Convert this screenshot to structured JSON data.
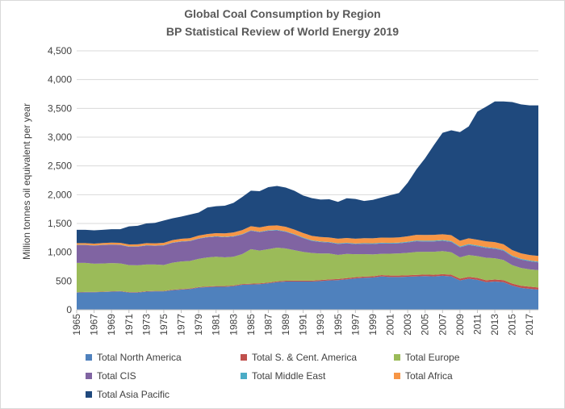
{
  "chart_data": {
    "type": "area",
    "stacked": true,
    "title": "Global Coal Consumption by Region",
    "subtitle": "BP Statistical Review of World Energy 2019",
    "xlabel": "",
    "ylabel": "Million tonnes oil equivalent per year",
    "ylim": [
      0,
      4500
    ],
    "yticks": [
      "0",
      "500",
      "1,000",
      "1,500",
      "2,000",
      "2,500",
      "3,000",
      "3,500",
      "4,000",
      "4,500"
    ],
    "x": [
      1965,
      1966,
      1967,
      1968,
      1969,
      1970,
      1971,
      1972,
      1973,
      1974,
      1975,
      1976,
      1977,
      1978,
      1979,
      1980,
      1981,
      1982,
      1983,
      1984,
      1985,
      1986,
      1987,
      1988,
      1989,
      1990,
      1991,
      1992,
      1993,
      1994,
      1995,
      1996,
      1997,
      1998,
      1999,
      2000,
      2001,
      2002,
      2003,
      2004,
      2005,
      2006,
      2007,
      2008,
      2009,
      2010,
      2011,
      2012,
      2013,
      2014,
      2015,
      2016,
      2017,
      2018
    ],
    "xticks": [
      "1965",
      "1967",
      "1969",
      "1971",
      "1973",
      "1975",
      "1977",
      "1979",
      "1981",
      "1983",
      "1985",
      "1987",
      "1989",
      "1991",
      "1993",
      "1995",
      "1997",
      "1999",
      "2001",
      "2003",
      "2005",
      "2007",
      "2009",
      "2011",
      "2013",
      "2015",
      "2017"
    ],
    "grid": true,
    "legend_position": "bottom",
    "series": [
      {
        "name": "Total North America",
        "color": "#4f81bd",
        "values": [
          300,
          305,
          305,
          310,
          315,
          320,
          300,
          300,
          315,
          320,
          320,
          340,
          350,
          360,
          385,
          395,
          400,
          400,
          410,
          435,
          440,
          445,
          460,
          480,
          490,
          490,
          490,
          490,
          500,
          510,
          515,
          530,
          545,
          555,
          560,
          580,
          570,
          570,
          575,
          580,
          585,
          580,
          590,
          580,
          510,
          540,
          520,
          480,
          490,
          480,
          420,
          380,
          365,
          350
        ]
      },
      {
        "name": "Total S. & Cent. America",
        "color": "#c0504d",
        "values": [
          5,
          5,
          5,
          5,
          6,
          6,
          6,
          7,
          7,
          7,
          8,
          8,
          9,
          9,
          10,
          10,
          11,
          11,
          12,
          12,
          13,
          14,
          14,
          15,
          15,
          16,
          16,
          17,
          17,
          18,
          19,
          20,
          21,
          22,
          22,
          23,
          24,
          24,
          25,
          26,
          27,
          28,
          29,
          30,
          31,
          32,
          33,
          34,
          35,
          36,
          36,
          37,
          37,
          38
        ]
      },
      {
        "name": "Total Europe",
        "color": "#9bbb59",
        "values": [
          510,
          505,
          490,
          490,
          490,
          480,
          470,
          465,
          465,
          460,
          450,
          470,
          480,
          480,
          490,
          505,
          510,
          500,
          500,
          520,
          600,
          570,
          580,
          585,
          560,
          530,
          500,
          480,
          460,
          450,
          420,
          420,
          400,
          390,
          380,
          370,
          380,
          385,
          390,
          400,
          395,
          400,
          400,
          390,
          370,
          380,
          380,
          390,
          370,
          350,
          320,
          310,
          300,
          300
        ]
      },
      {
        "name": "Total CIS",
        "color": "#8064a2",
        "values": [
          310,
          310,
          315,
          320,
          320,
          320,
          320,
          325,
          330,
          325,
          340,
          345,
          345,
          345,
          350,
          350,
          350,
          350,
          350,
          340,
          320,
          320,
          320,
          300,
          290,
          270,
          240,
          210,
          200,
          190,
          190,
          185,
          175,
          180,
          180,
          180,
          175,
          175,
          180,
          185,
          180,
          180,
          180,
          180,
          175,
          175,
          170,
          170,
          165,
          160,
          150,
          145,
          140,
          135
        ]
      },
      {
        "name": "Total Middle East",
        "color": "#4bacc6",
        "values": [
          3,
          3,
          3,
          3,
          3,
          4,
          4,
          4,
          4,
          4,
          5,
          5,
          5,
          5,
          6,
          6,
          6,
          7,
          7,
          7,
          8,
          8,
          8,
          9,
          9,
          9,
          10,
          10,
          10,
          10,
          11,
          11,
          11,
          12,
          12,
          12,
          12,
          13,
          13,
          13,
          14,
          14,
          14,
          14,
          15,
          15,
          15,
          15,
          15,
          15,
          15,
          15,
          15,
          15
        ]
      },
      {
        "name": "Total Africa",
        "color": "#f79646",
        "values": [
          30,
          30,
          31,
          32,
          33,
          34,
          35,
          36,
          37,
          38,
          40,
          42,
          44,
          46,
          48,
          50,
          55,
          60,
          65,
          70,
          72,
          75,
          77,
          78,
          78,
          78,
          78,
          78,
          78,
          78,
          80,
          82,
          84,
          86,
          88,
          90,
          92,
          92,
          95,
          98,
          100,
          100,
          100,
          102,
          100,
          100,
          100,
          100,
          100,
          98,
          96,
          95,
          95,
          98
        ]
      },
      {
        "name": "Total Asia Pacific",
        "color": "#1f497d",
        "values": [
          232,
          232,
          231,
          229,
          233,
          236,
          315,
          323,
          342,
          356,
          387,
          380,
          387,
          409,
          401,
          460,
          468,
          480,
          514,
          575,
          617,
          628,
          671,
          685,
          682,
          674,
          652,
          655,
          650,
          664,
          640,
          690,
          690,
          645,
          668,
          695,
          737,
          771,
          930,
          1138,
          1333,
          1557,
          1762,
          1824,
          1887,
          1943,
          2225,
          2340,
          2445,
          2481,
          2573,
          2588,
          2600,
          2616
        ]
      }
    ]
  },
  "legend": [
    {
      "label": "Total North America",
      "color": "#4f81bd"
    },
    {
      "label": "Total S. & Cent. America",
      "color": "#c0504d"
    },
    {
      "label": "Total Europe",
      "color": "#9bbb59"
    },
    {
      "label": "Total CIS",
      "color": "#8064a2"
    },
    {
      "label": "Total Middle East",
      "color": "#4bacc6"
    },
    {
      "label": "Total Africa",
      "color": "#f79646"
    },
    {
      "label": "Total Asia Pacific",
      "color": "#1f497d"
    }
  ]
}
